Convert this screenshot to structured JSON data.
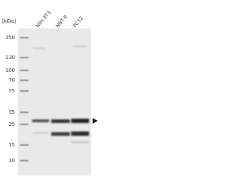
{
  "unit_label": "[kDa]",
  "lanes": [
    "NIH-3T3",
    "NBT-II",
    "PC12"
  ],
  "markers": [
    250,
    130,
    100,
    70,
    55,
    35,
    25,
    15,
    10
  ]
}
